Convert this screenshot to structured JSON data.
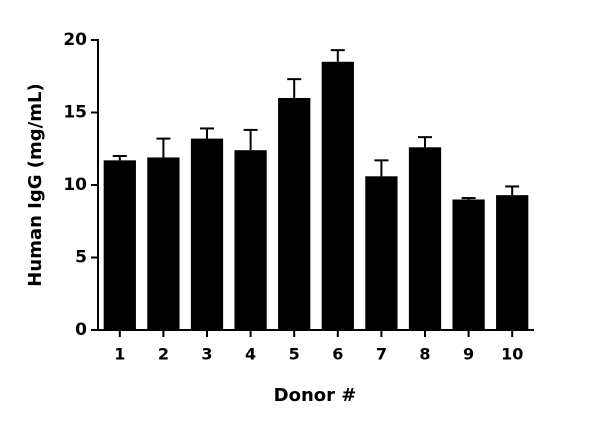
{
  "chart_data": {
    "type": "bar",
    "x_label": "Donor #",
    "y_label": "Human IgG (mg/mL)",
    "categories": [
      "1",
      "2",
      "3",
      "4",
      "5",
      "6",
      "7",
      "8",
      "9",
      "10"
    ],
    "values": [
      11.7,
      11.9,
      13.2,
      12.4,
      16.0,
      18.5,
      10.6,
      12.6,
      9.0,
      9.3
    ],
    "errors": [
      0.3,
      1.3,
      0.7,
      1.4,
      1.3,
      0.8,
      1.1,
      0.7,
      0.1,
      0.6
    ],
    "color": "#000000",
    "ylim": [
      0,
      20
    ],
    "yticks": [
      0,
      5,
      10,
      15,
      20
    ],
    "grid": false
  }
}
